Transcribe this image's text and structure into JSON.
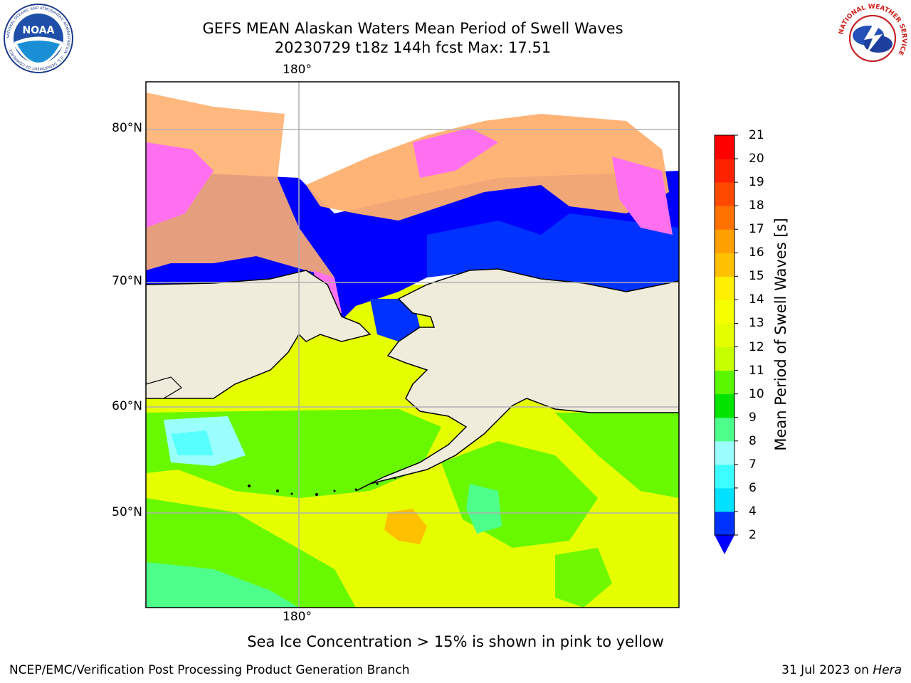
{
  "header": {
    "title_line1": "GEFS MEAN Alaskan Waters Mean Period of Swell Waves",
    "title_line2": "20230729 t18z 144h fcst   Max: 17.51"
  },
  "logos": {
    "left": {
      "icon": "noaa-logo",
      "text": "NOAA",
      "ring_text": "NATIONAL OCEANIC AND ATMOSPHERIC ADMINISTRATION · U.S. DEPARTMENT OF COMMERCE"
    },
    "right": {
      "icon": "nws-logo",
      "ring_text": "NATIONAL WEATHER SERVICE"
    }
  },
  "map": {
    "lon_label_top": "180°",
    "lon_label_bottom": "180°",
    "lat_labels": [
      "80°N",
      "70°N",
      "60°N",
      "50°N"
    ],
    "land_color": "#efecdc",
    "grid_color": "#b0b0b0"
  },
  "colorbar": {
    "title": "Mean Period of Swell Waves [s]",
    "ticks": [
      "21",
      "20",
      "19",
      "18",
      "17",
      "16",
      "15",
      "14",
      "13",
      "12",
      "11",
      "10",
      "9",
      "8",
      "7",
      "6",
      "4",
      "2"
    ],
    "colors": [
      "#0032ff",
      "#00e1ff",
      "#3cffff",
      "#9bffff",
      "#4dff8a",
      "#00e400",
      "#5af700",
      "#c8ff00",
      "#e6ff00",
      "#f5ff00",
      "#ffef00",
      "#ffc000",
      "#ff9f00",
      "#ff7200",
      "#ff4a00",
      "#ff2200",
      "#ff0000"
    ],
    "under_color": "#0000ff"
  },
  "caption": "Sea Ice Concentration > 15% is shown in pink to yellow",
  "footer": {
    "left": "NCEP/EMC/Verification Post Processing Product Generation Branch",
    "right_date": "31 Jul 2023 on",
    "right_host": "Hera"
  }
}
